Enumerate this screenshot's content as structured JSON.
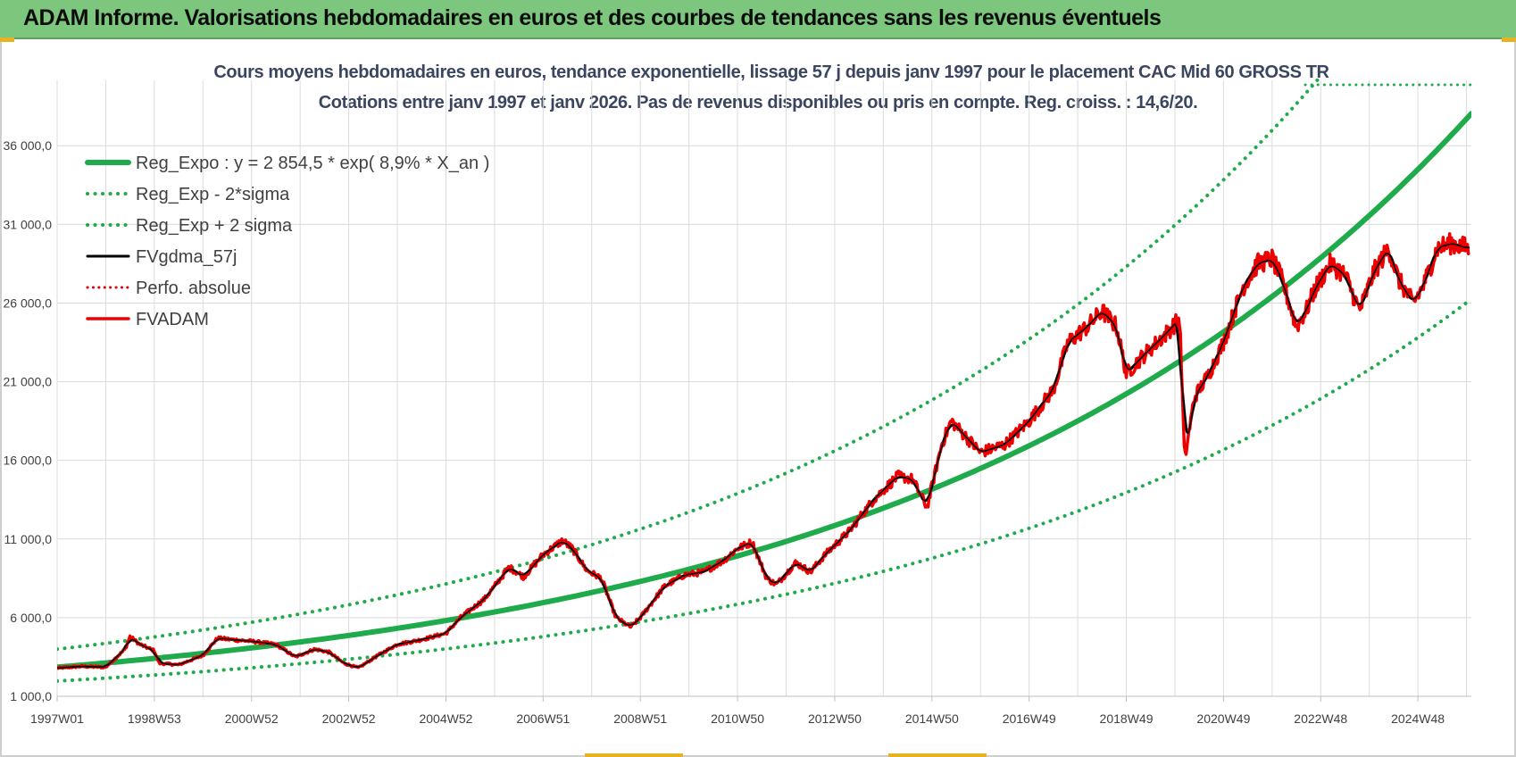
{
  "header": {
    "title": "ADAM Informe. Valorisations hebdomadaires en euros et des courbes de tendances sans les revenus éventuels"
  },
  "chart_data": {
    "type": "line",
    "title": "Cours moyens hebdomadaires en euros, tendance exponentielle, lissage 57 j depuis janv 1997  pour le placement CAC Mid 60 GROSS TR",
    "subtitle": "Cotations entre janv 1997 et janv 2026. Pas de revenus disponibles ou pris en compte. Reg. croiss. : 14,6/20.",
    "xlabel": "",
    "ylabel": "",
    "ylim": [
      1000,
      38000
    ],
    "xlim": [
      1997.0,
      2026.1
    ],
    "y_ticks": [
      1000,
      6000,
      11000,
      16000,
      21000,
      26000,
      31000,
      36000
    ],
    "y_tick_labels": [
      "1 000,0",
      "6 000,0",
      "11 000,0",
      "16 000,0",
      "21 000,0",
      "26 000,0",
      "31 000,0",
      "36 000,0"
    ],
    "x_ticks": [
      1997.0,
      1999.0,
      2001.0,
      2003.0,
      2005.0,
      2007.0,
      2009.0,
      2011.0,
      2013.0,
      2015.0,
      2017.0,
      2019.0,
      2021.0,
      2023.0,
      2025.0
    ],
    "x_tick_labels": [
      "1997W01",
      "1998W53",
      "2000W52",
      "2002W52",
      "2004W52",
      "2006W51",
      "2008W51",
      "2010W50",
      "2012W50",
      "2014W50",
      "2016W49",
      "2018W49",
      "2020W49",
      "2022W48",
      "2024W48"
    ],
    "grid": true,
    "legend_position": "top-left",
    "regression": {
      "a": 2854.5,
      "growth": 0.089,
      "x0": 1997.0,
      "x1": 2026.1,
      "sigma_factor": 0.35
    },
    "series": [
      {
        "name": "Reg_Expo : y = 2 854,5 * exp( 8,9% *  X_an )",
        "kind": "reg",
        "color": "#1faa4b",
        "style": "solid",
        "width": 6
      },
      {
        "name": "Reg_Exp - 2*sigma",
        "kind": "reg_low",
        "color": "#1faa4b",
        "style": "dotted",
        "width": 4
      },
      {
        "name": "Reg_Exp + 2 sigma",
        "kind": "reg_high",
        "color": "#1faa4b",
        "style": "dotted",
        "width": 4
      },
      {
        "name": "FVgdma_57j",
        "kind": "smooth",
        "color": "#000000",
        "style": "solid",
        "width": 3
      },
      {
        "name": "Perfo. absolue",
        "kind": "none",
        "color": "#e60000",
        "style": "dotted",
        "width": 3
      },
      {
        "name": "FVADAM",
        "kind": "price",
        "color": "#ee0000",
        "style": "solid",
        "width": 3.5
      }
    ],
    "price_points": [
      [
        1997.0,
        2800
      ],
      [
        1997.5,
        2900
      ],
      [
        1998.0,
        2850
      ],
      [
        1998.4,
        4000
      ],
      [
        1998.5,
        4800
      ],
      [
        1998.7,
        4300
      ],
      [
        1999.0,
        3900
      ],
      [
        1999.1,
        3100
      ],
      [
        1999.5,
        3000
      ],
      [
        2000.0,
        3600
      ],
      [
        2000.3,
        4700
      ],
      [
        2000.6,
        4600
      ],
      [
        2001.0,
        4500
      ],
      [
        2001.5,
        4300
      ],
      [
        2001.9,
        3500
      ],
      [
        2002.3,
        4000
      ],
      [
        2002.6,
        3800
      ],
      [
        2002.9,
        3100
      ],
      [
        2003.2,
        2800
      ],
      [
        2003.6,
        3600
      ],
      [
        2004.0,
        4300
      ],
      [
        2004.5,
        4600
      ],
      [
        2005.0,
        5000
      ],
      [
        2005.3,
        6000
      ],
      [
        2005.8,
        7200
      ],
      [
        2006.3,
        9200
      ],
      [
        2006.6,
        8600
      ],
      [
        2007.0,
        10000
      ],
      [
        2007.4,
        10900
      ],
      [
        2007.6,
        10400
      ],
      [
        2007.9,
        9000
      ],
      [
        2008.2,
        8500
      ],
      [
        2008.5,
        6000
      ],
      [
        2008.7,
        5600
      ],
      [
        2008.8,
        5400
      ],
      [
        2009.0,
        6000
      ],
      [
        2009.5,
        8000
      ],
      [
        2009.9,
        8700
      ],
      [
        2010.3,
        8900
      ],
      [
        2010.7,
        9600
      ],
      [
        2011.0,
        10400
      ],
      [
        2011.3,
        10800
      ],
      [
        2011.6,
        8500
      ],
      [
        2011.8,
        8100
      ],
      [
        2012.2,
        9500
      ],
      [
        2012.5,
        8900
      ],
      [
        2012.8,
        10000
      ],
      [
        2013.3,
        11500
      ],
      [
        2013.8,
        13500
      ],
      [
        2014.3,
        15000
      ],
      [
        2014.6,
        14800
      ],
      [
        2014.9,
        13000
      ],
      [
        2015.2,
        17000
      ],
      [
        2015.4,
        18500
      ],
      [
        2015.7,
        17500
      ],
      [
        2016.0,
        16500
      ],
      [
        2016.5,
        17000
      ],
      [
        2017.0,
        18500
      ],
      [
        2017.5,
        20500
      ],
      [
        2017.8,
        23500
      ],
      [
        2018.2,
        24500
      ],
      [
        2018.5,
        25500
      ],
      [
        2018.8,
        24500
      ],
      [
        2019.0,
        21500
      ],
      [
        2019.3,
        22500
      ],
      [
        2019.8,
        24000
      ],
      [
        2020.1,
        25000
      ],
      [
        2020.2,
        16000
      ],
      [
        2020.4,
        20000
      ],
      [
        2020.7,
        21500
      ],
      [
        2021.0,
        23500
      ],
      [
        2021.4,
        27000
      ],
      [
        2021.7,
        28500
      ],
      [
        2022.0,
        28800
      ],
      [
        2022.2,
        27500
      ],
      [
        2022.5,
        24500
      ],
      [
        2022.7,
        25500
      ],
      [
        2022.9,
        27000
      ],
      [
        2023.2,
        28500
      ],
      [
        2023.5,
        27800
      ],
      [
        2023.8,
        25500
      ],
      [
        2024.1,
        28000
      ],
      [
        2024.4,
        29500
      ],
      [
        2024.6,
        27500
      ],
      [
        2024.9,
        26000
      ],
      [
        2025.1,
        27000
      ],
      [
        2025.4,
        29500
      ],
      [
        2025.7,
        29800
      ],
      [
        2026.0,
        29500
      ]
    ]
  }
}
